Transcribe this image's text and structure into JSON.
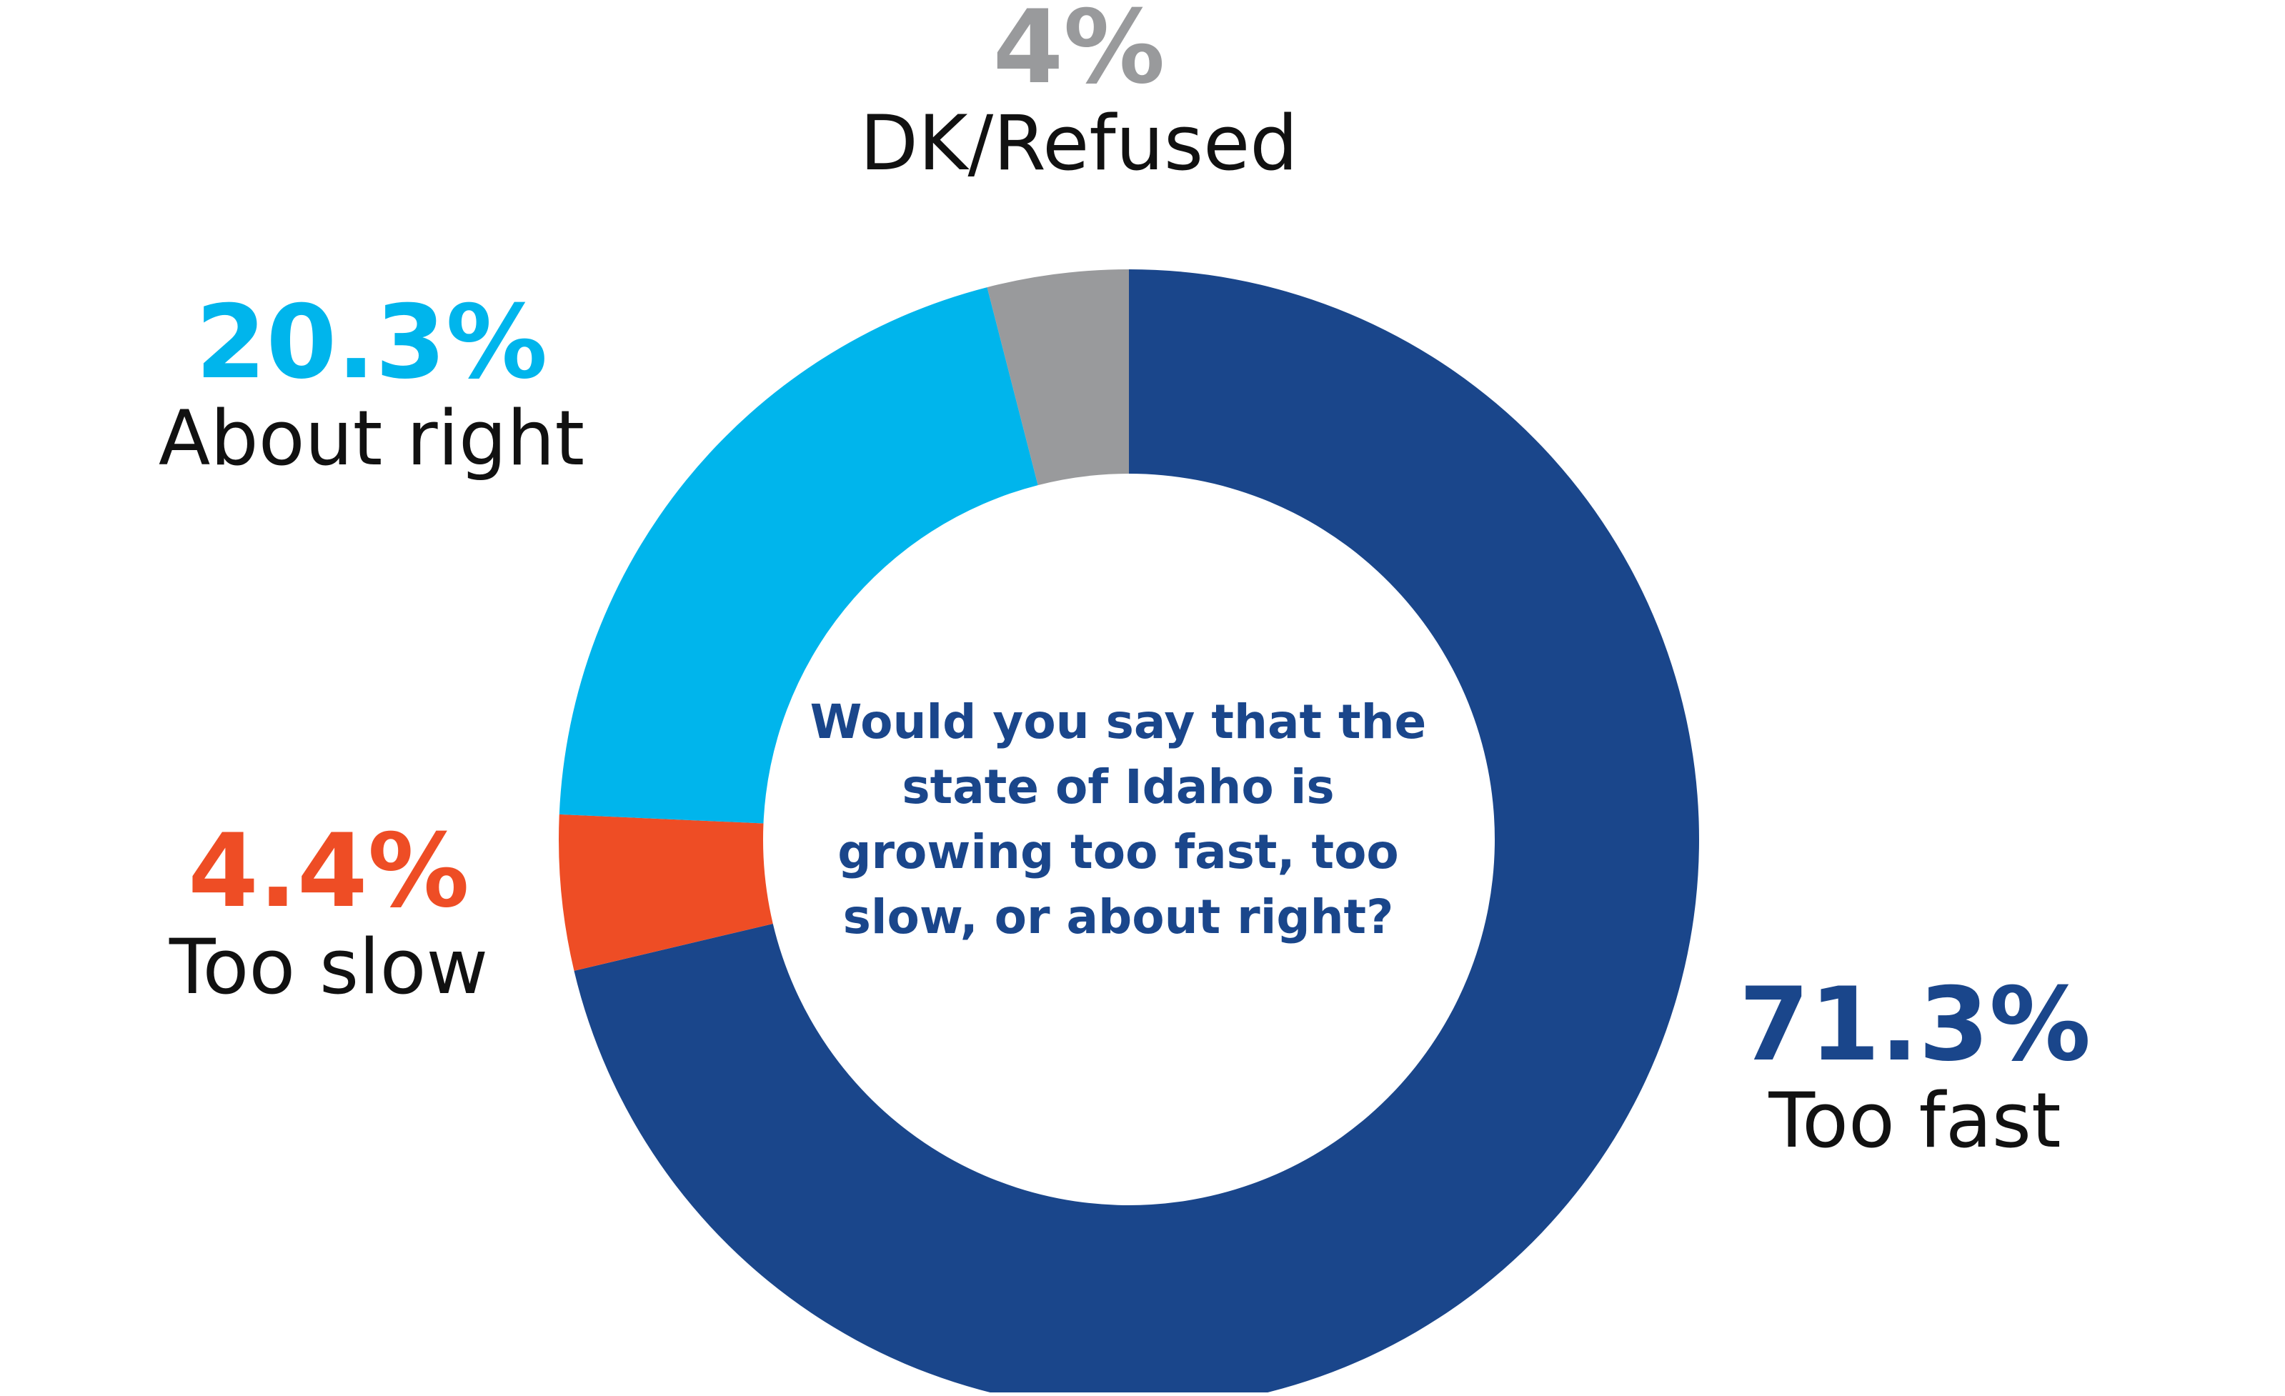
{
  "chart_data": {
    "type": "pie",
    "style": "donut",
    "center_text": "Would you say that the\nstate of Idaho is\ngrowing too fast, too\nslow, or about right?",
    "slices": [
      {
        "label": "Too fast",
        "value": 71.3,
        "value_label": "71.3%",
        "color": "#1a468b"
      },
      {
        "label": "Too slow",
        "value": 4.4,
        "value_label": "4.4%",
        "color": "#ee4d25"
      },
      {
        "label": "About right",
        "value": 20.3,
        "value_label": "20.3%",
        "color": "#00b5ec"
      },
      {
        "label": "DK/Refused",
        "value": 4,
        "value_label": "4%",
        "color": "#999a9c"
      }
    ]
  }
}
